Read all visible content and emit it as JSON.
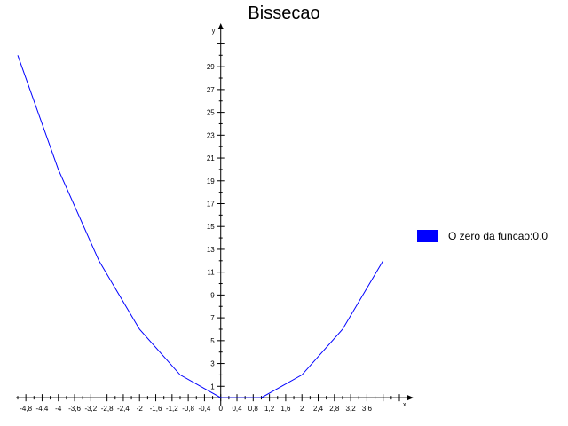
{
  "chart_data": {
    "type": "line",
    "title": "Bissecao",
    "xlabel": "x",
    "ylabel": "y",
    "xlim": [
      -5.0,
      4.4
    ],
    "ylim": [
      -0.3,
      31.5
    ],
    "x_ticks": [
      -4.8,
      -4.4,
      -4.0,
      -3.6,
      -3.2,
      -2.8,
      -2.4,
      -2.0,
      -1.6,
      -1.2,
      -0.8,
      -0.4,
      0.0,
      0.4,
      0.8,
      1.2,
      1.6,
      2.0,
      2.4,
      2.8,
      3.2,
      3.6
    ],
    "x_tick_labels": [
      "-4,8",
      "-4,4",
      "-4",
      "-3,6",
      "-3,2",
      "-2,8",
      "-2,4",
      "-2",
      "-1,6",
      "-1,2",
      "-0,8",
      "-0,4",
      "0",
      "0,4",
      "0,8",
      "1,2",
      "1,6",
      "2",
      "2,4",
      "2,8",
      "3,2",
      "3,6"
    ],
    "y_ticks": [
      1,
      3,
      5,
      7,
      9,
      11,
      13,
      15,
      17,
      19,
      21,
      23,
      25,
      27,
      29
    ],
    "y_tick_labels": [
      "1",
      "3",
      "5",
      "7",
      "9",
      "11",
      "13",
      "15",
      "17",
      "19",
      "21",
      "23",
      "25",
      "27",
      "29"
    ],
    "grid": false,
    "legend_position": "right",
    "series": [
      {
        "name": "O zero da funcao:0.0",
        "color": "#0000ff",
        "x": [
          -5,
          -4,
          -3,
          -2,
          -1,
          0,
          1,
          2,
          3,
          4
        ],
        "y": [
          30,
          20,
          12,
          6,
          2,
          0,
          0,
          2,
          6,
          12
        ]
      }
    ]
  }
}
